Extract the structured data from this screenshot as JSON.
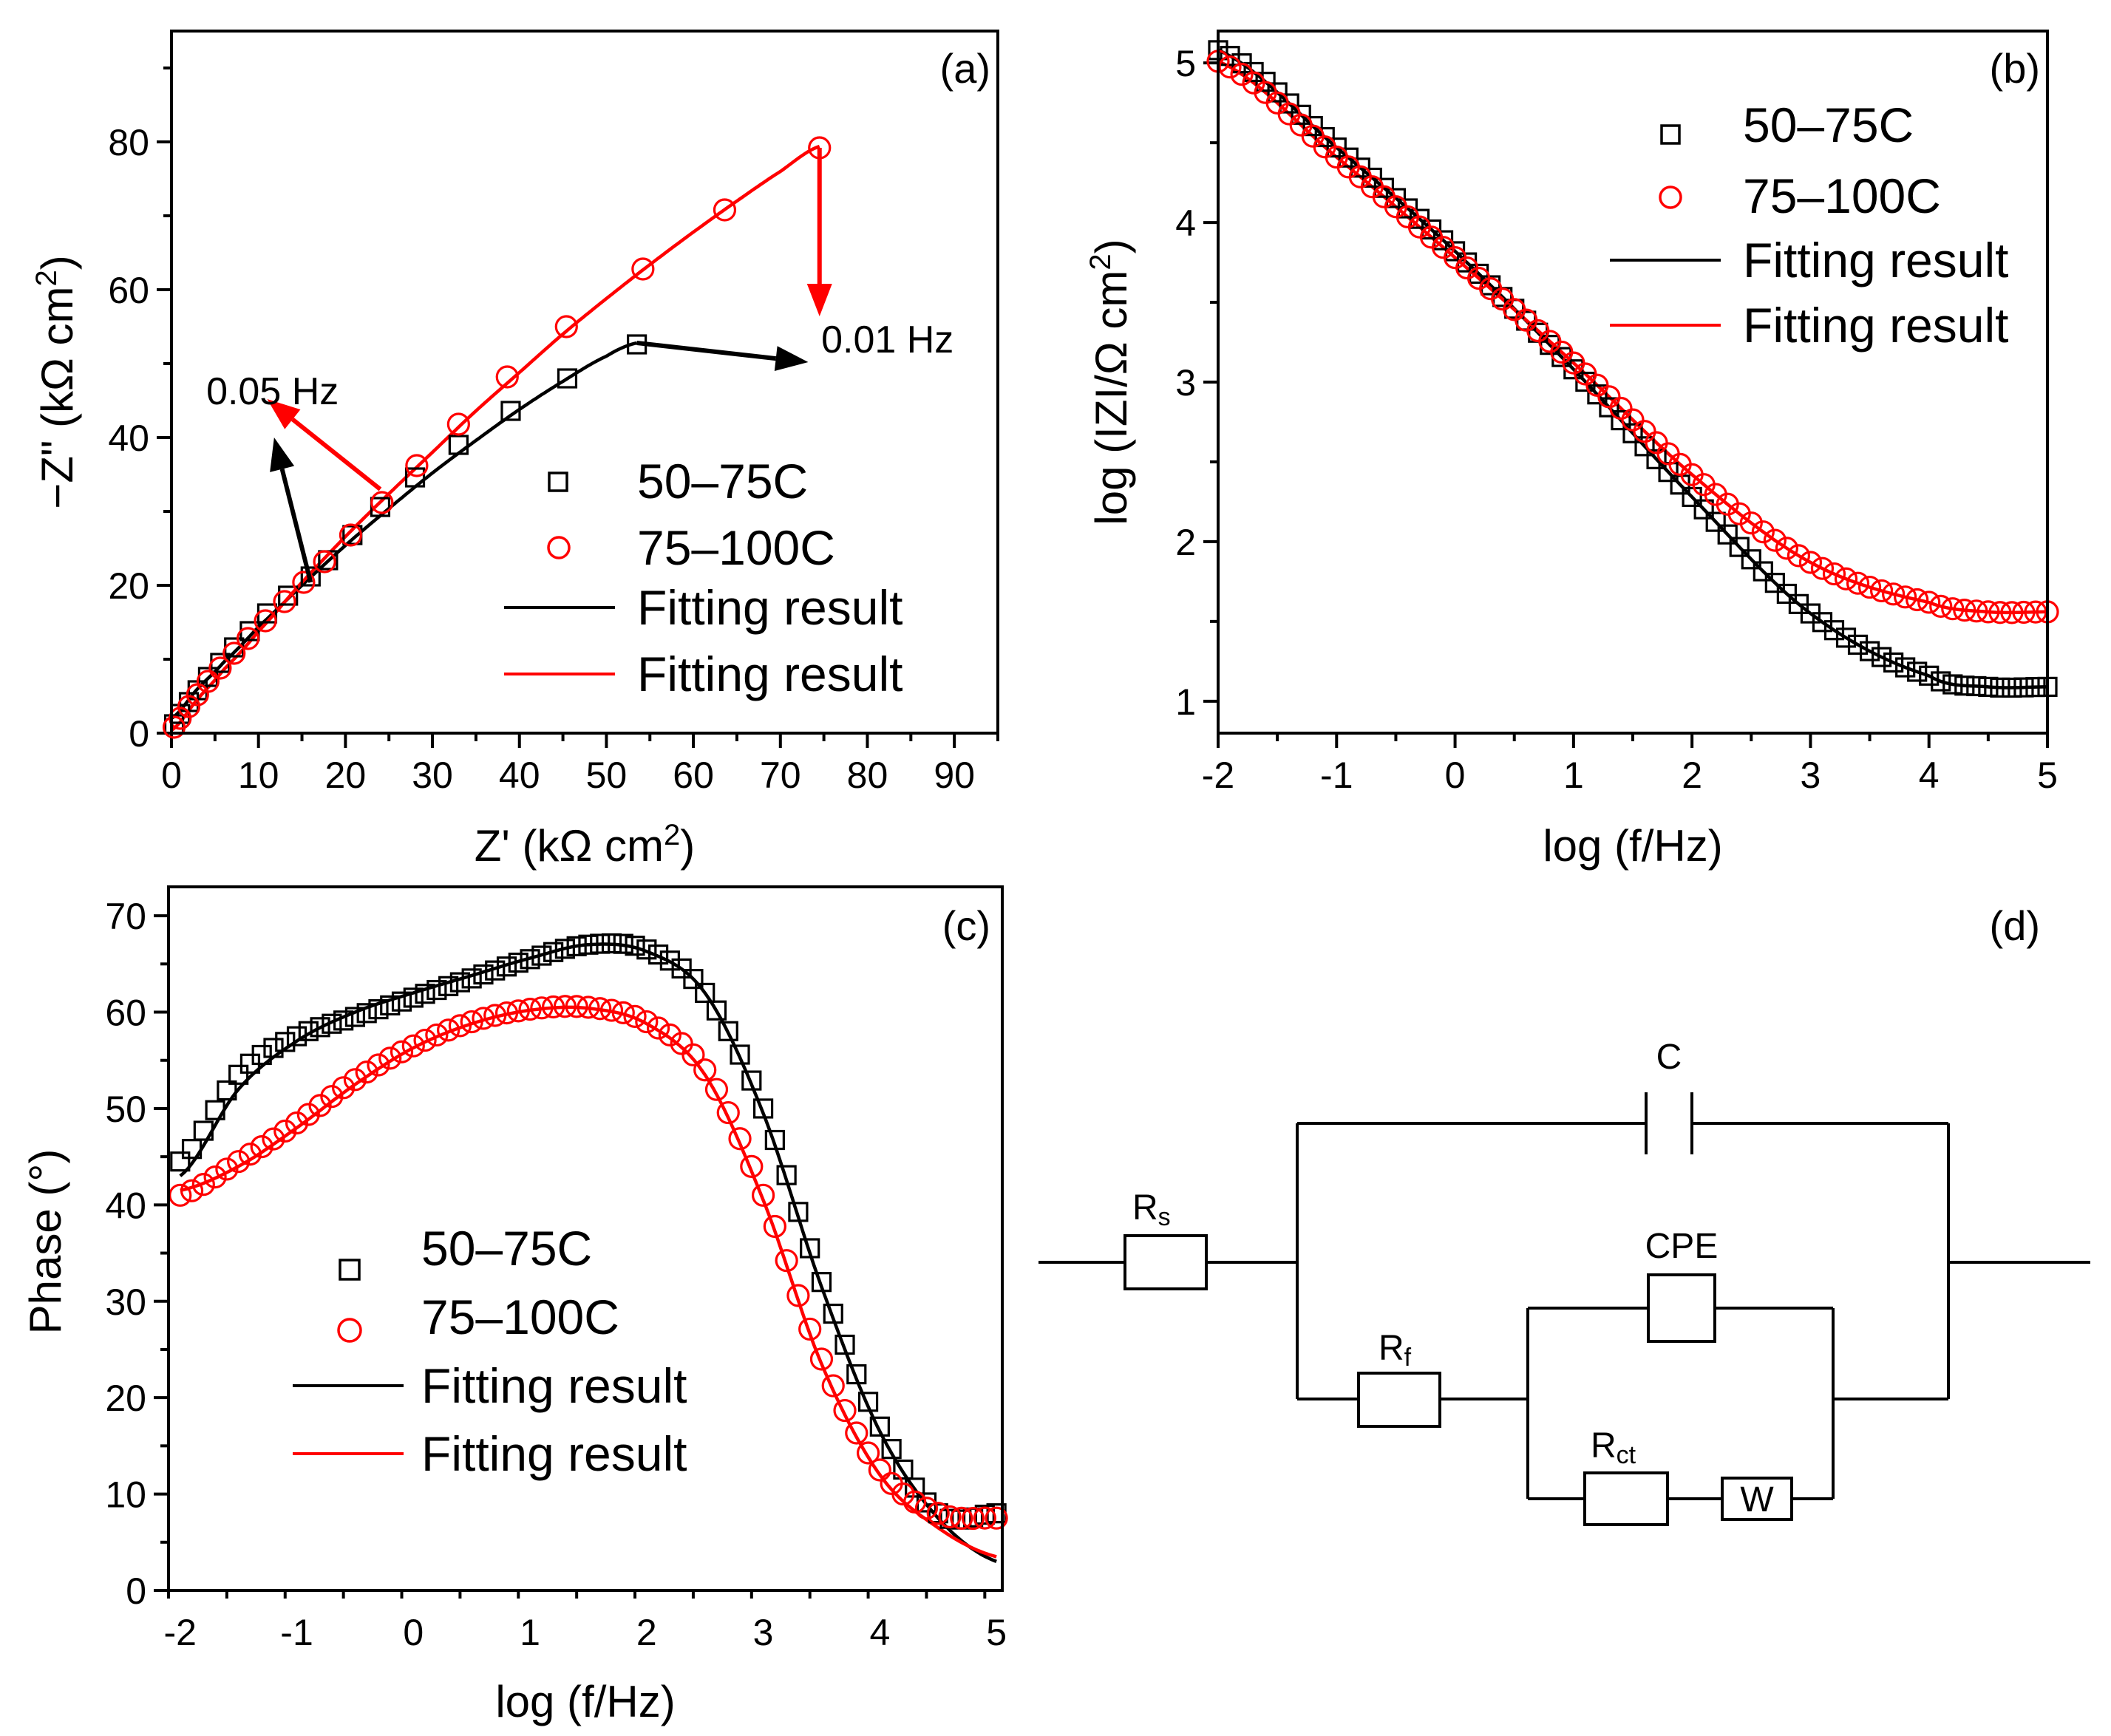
{
  "chart_data": [
    {
      "id": "a",
      "type": "scatter",
      "panel_label": "(a)",
      "xlabel_main": "Z' (kΩ cm",
      "xlabel_sup": "2",
      "xlabel_end": ")",
      "ylabel_main": "−Z\" (kΩ cm",
      "ylabel_sup": "2",
      "ylabel_end": ")",
      "xlim": [
        0,
        95
      ],
      "ylim": [
        0,
        95
      ],
      "xticks": [
        0,
        10,
        20,
        30,
        40,
        50,
        60,
        70,
        80,
        90
      ],
      "yticks": [
        0,
        20,
        40,
        60,
        80
      ],
      "series": [
        {
          "name": "50–75C",
          "marker": "square",
          "color": "#000000",
          "x": [
            0.3,
            1.0,
            2.0,
            3.0,
            4.2,
            5.6,
            7.2,
            9.0,
            11.0,
            13.4,
            16.0,
            18.0,
            20.8,
            24.0,
            28.0,
            33.0,
            39.0,
            45.5,
            53.5
          ],
          "y": [
            1.2,
            2.6,
            4.2,
            5.8,
            7.6,
            9.5,
            11.6,
            13.8,
            16.2,
            18.6,
            21.2,
            23.4,
            26.8,
            30.6,
            34.6,
            39.0,
            43.6,
            48.0,
            52.6
          ]
        },
        {
          "name": "75–100C",
          "marker": "circle",
          "color": "#ff0000",
          "x": [
            0.3,
            1.0,
            2.0,
            3.0,
            4.2,
            5.6,
            7.2,
            8.8,
            10.8,
            13.0,
            15.2,
            17.6,
            20.6,
            24.2,
            28.2,
            33.0,
            38.6,
            45.4,
            54.2,
            63.6,
            74.5
          ],
          "y": [
            0.8,
            2.0,
            3.6,
            5.2,
            7.0,
            8.8,
            10.8,
            12.8,
            15.2,
            17.8,
            20.4,
            23.2,
            26.8,
            31.2,
            36.2,
            41.8,
            48.2,
            55.0,
            62.8,
            70.8,
            79.2
          ]
        },
        {
          "name": "Fitting result",
          "line": true,
          "color": "#000000",
          "x": [
            0,
            3,
            6,
            10,
            15,
            20,
            25,
            30,
            35,
            40,
            45,
            50,
            53.5
          ],
          "y": [
            2.0,
            6.0,
            9.6,
            14.4,
            20.0,
            25.4,
            30.4,
            35.2,
            39.6,
            43.8,
            47.6,
            51.0,
            52.8
          ]
        },
        {
          "name": "Fitting result",
          "line": true,
          "color": "#ff0000",
          "x": [
            0,
            3,
            6,
            10,
            15,
            20,
            25,
            30,
            35,
            40,
            45,
            50,
            55,
            60,
            65,
            70,
            74.5
          ],
          "y": [
            0.4,
            4.6,
            8.6,
            13.8,
            20.4,
            26.6,
            32.4,
            38.0,
            43.6,
            48.8,
            54.0,
            58.8,
            63.4,
            67.8,
            72.0,
            76.0,
            79.4
          ]
        }
      ],
      "annotations": [
        {
          "text": "0.05 Hz",
          "x": 4,
          "y": 44.5
        },
        {
          "text": "0.01 Hz",
          "x": 74.7,
          "y": 51.5
        }
      ],
      "arrows": [
        {
          "color": "#ff0000",
          "from": [
            24.0,
            33.0
          ],
          "to": [
            11.0,
            45.2
          ]
        },
        {
          "color": "#000000",
          "from": [
            16.0,
            20.4
          ],
          "to": [
            11.8,
            40.0
          ]
        },
        {
          "color": "#000000",
          "from": [
            53.5,
            52.8
          ],
          "to": [
            73.2,
            50.2
          ]
        },
        {
          "color": "#ff0000",
          "from": [
            74.5,
            79.2
          ],
          "to": [
            74.5,
            56.4
          ]
        }
      ],
      "legend": [
        "50–75C",
        "75–100C",
        "Fitting result",
        "Fitting result"
      ]
    },
    {
      "id": "b",
      "type": "scatter",
      "panel_label": "(b)",
      "xlabel": "log (f/Hz)",
      "ylabel_main": "log (IZI/Ω cm",
      "ylabel_sup": "2",
      "ylabel_end": ")",
      "xlim": [
        -2,
        5
      ],
      "ylim": [
        0.8,
        5.2
      ],
      "xticks": [
        -2,
        -1,
        0,
        1,
        2,
        3,
        4,
        5
      ],
      "yticks": [
        1,
        2,
        3,
        4,
        5
      ],
      "series": [
        {
          "name": "50–75C",
          "marker": "square",
          "color": "#000000",
          "x": [
            -2,
            -1,
            0,
            1,
            2,
            3,
            4,
            4.5,
            5
          ],
          "y": [
            5.08,
            4.47,
            3.82,
            3.08,
            2.28,
            1.55,
            1.16,
            1.09,
            1.09
          ]
        },
        {
          "name": "75–100C",
          "marker": "circle",
          "color": "#ff0000",
          "x": [
            -2,
            -1,
            0,
            1,
            2,
            3,
            4,
            4.5,
            5
          ],
          "y": [
            5.01,
            4.41,
            3.78,
            3.12,
            2.42,
            1.87,
            1.62,
            1.56,
            1.56
          ]
        },
        {
          "name": "Fitting result",
          "line": true,
          "color": "#000000",
          "x": [
            -2,
            -1,
            0,
            1,
            2,
            3,
            4,
            4.5,
            5
          ],
          "y": [
            5.08,
            4.47,
            3.82,
            3.08,
            2.28,
            1.55,
            1.16,
            1.09,
            1.09
          ]
        },
        {
          "name": "Fitting result",
          "line": true,
          "color": "#ff0000",
          "x": [
            -2,
            -1,
            0,
            1,
            2,
            3,
            4,
            4.5,
            5
          ],
          "y": [
            5.01,
            4.41,
            3.78,
            3.12,
            2.42,
            1.87,
            1.62,
            1.56,
            1.56
          ]
        }
      ],
      "legend": [
        "50–75C",
        "75–100C",
        "Fitting result",
        "Fitting result"
      ]
    },
    {
      "id": "c",
      "type": "scatter",
      "panel_label": "(c)",
      "xlabel": "log (f/Hz)",
      "ylabel": "Phase (°)",
      "xlim": [
        -2.1,
        5.05
      ],
      "ylim": [
        0,
        73
      ],
      "xticks": [
        -2,
        -1,
        0,
        1,
        2,
        3,
        4,
        5
      ],
      "yticks": [
        0,
        10,
        20,
        30,
        40,
        50,
        60,
        70
      ],
      "series": [
        {
          "name": "50–75C",
          "marker": "square",
          "color": "#000000",
          "x": [
            -2,
            -1.5,
            -1,
            -0.5,
            0,
            0.5,
            1,
            1.5,
            2,
            2.5,
            3,
            3.5,
            4,
            4.5,
            5
          ],
          "y": [
            44.5,
            53.5,
            57.5,
            59.5,
            61.5,
            63.5,
            65.5,
            67,
            66.5,
            62,
            50,
            32,
            17,
            8,
            8
          ]
        },
        {
          "name": "75–100C",
          "marker": "circle",
          "color": "#ff0000",
          "x": [
            -2,
            -1.5,
            -1,
            -0.5,
            0,
            0.5,
            1,
            1.5,
            2,
            2.5,
            3,
            3.5,
            4,
            4.5,
            5
          ],
          "y": [
            41,
            44.5,
            48.5,
            53,
            56.5,
            59,
            60.3,
            60.5,
            59,
            54,
            41,
            24,
            12.5,
            8,
            7.5
          ]
        },
        {
          "name": "Fitting result",
          "line": true,
          "color": "#000000",
          "x": [
            -2,
            -1.5,
            -1,
            -0.5,
            0,
            0.5,
            1,
            1.5,
            2,
            2.5,
            3,
            3.5,
            4,
            4.5,
            5
          ],
          "y": [
            43,
            52,
            57,
            60,
            62,
            63.8,
            65.6,
            67,
            66.3,
            62,
            49.5,
            31.5,
            16.5,
            7.5,
            3
          ]
        },
        {
          "name": "Fitting result",
          "line": true,
          "color": "#ff0000",
          "x": [
            -2,
            -1.5,
            -1,
            -0.5,
            0,
            0.5,
            1,
            1.5,
            2,
            2.5,
            3,
            3.5,
            4,
            4.5,
            5
          ],
          "y": [
            41.5,
            44,
            48,
            52.5,
            56.3,
            58.8,
            60.2,
            60.4,
            58.8,
            53.5,
            40.5,
            23.5,
            12,
            6.5,
            3.5
          ]
        }
      ],
      "legend": [
        "50–75C",
        "75–100C",
        "Fitting result",
        "Fitting result"
      ]
    }
  ],
  "circuit": {
    "panel_label": "(d)",
    "capacitor_label": "C",
    "rs_main": "R",
    "rs_sub": "s",
    "rf_main": "R",
    "rf_sub": "f",
    "rct_main": "R",
    "rct_sub": "ct",
    "cpe_label": "CPE",
    "w_label": "W"
  }
}
